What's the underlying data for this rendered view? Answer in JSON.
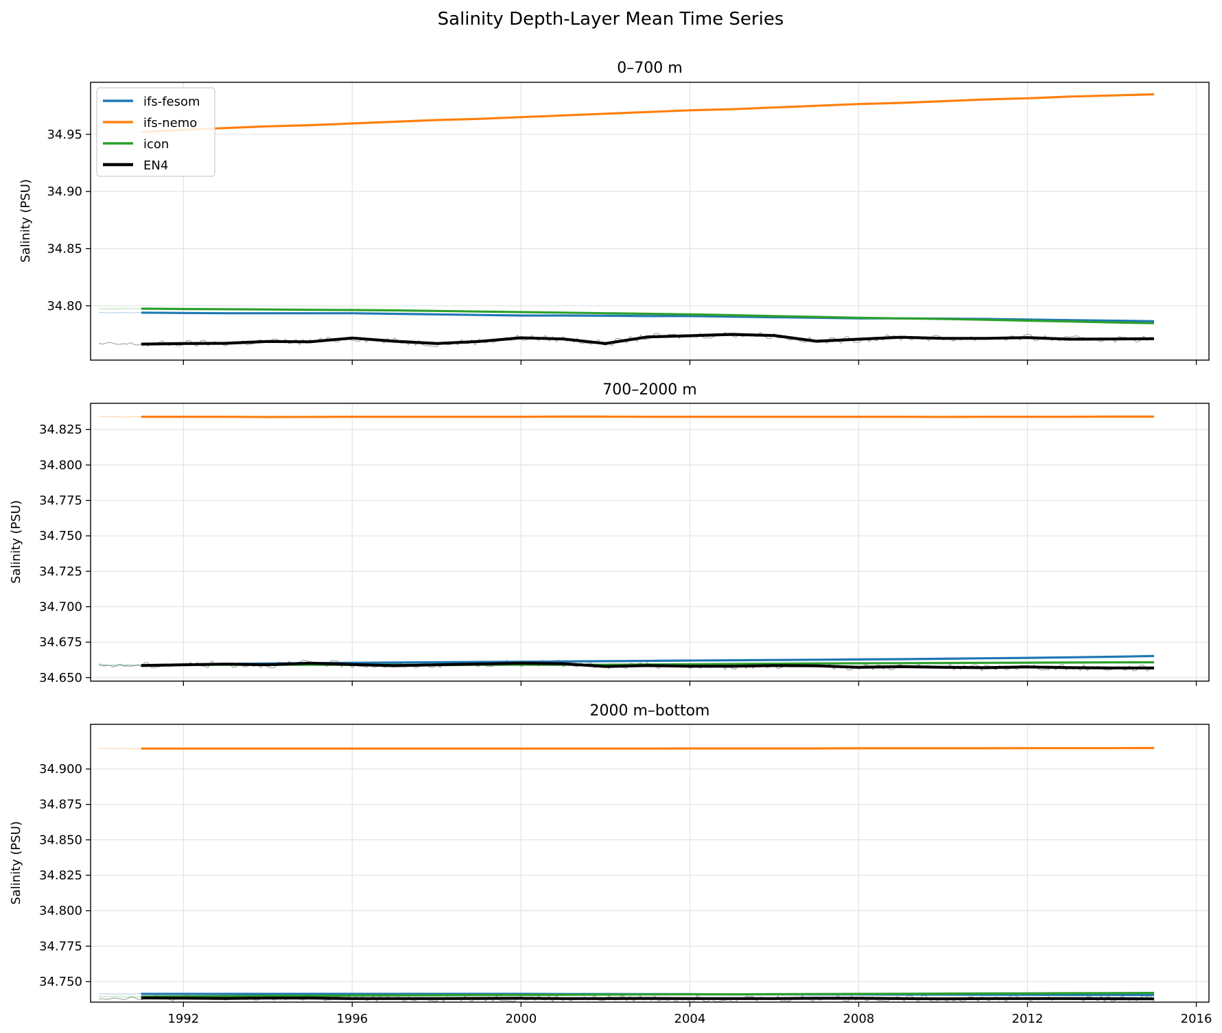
{
  "figure_title": "Salinity Depth-Layer Mean Time Series",
  "colors": {
    "ifs-fesom": "#1f77b4",
    "ifs-nemo": "#ff7f0e",
    "icon": "#2ca02c",
    "EN4": "#000000"
  },
  "legend": {
    "placement": "upper-left",
    "entries": [
      "ifs-fesom",
      "ifs-nemo",
      "icon",
      "EN4"
    ]
  },
  "chart_data": [
    {
      "type": "line",
      "title": "0–700 m",
      "ylabel": "Salinity (PSU)",
      "xlabel": "",
      "xlim": [
        1989.8,
        2016.3
      ],
      "ylim": [
        34.7525,
        34.9955
      ],
      "x_ticks": [
        1992,
        1996,
        2000,
        2004,
        2008,
        2012,
        2016
      ],
      "y_ticks": [
        34.8,
        34.85,
        34.9,
        34.95
      ],
      "y_tick_labels": [
        "34.80",
        "34.85",
        "34.90",
        "34.95"
      ],
      "grid": true,
      "legend": true,
      "x": [
        1991,
        1992,
        1993,
        1994,
        1995,
        1996,
        1997,
        1998,
        1999,
        2000,
        2001,
        2002,
        2003,
        2004,
        2005,
        2006,
        2007,
        2008,
        2009,
        2010,
        2011,
        2012,
        2013,
        2014,
        2015
      ],
      "series": [
        {
          "name": "ifs-fesom",
          "values": [
            34.794,
            34.7937,
            34.7935,
            34.7935,
            34.7935,
            34.7935,
            34.793,
            34.7925,
            34.792,
            34.7915,
            34.7915,
            34.7913,
            34.791,
            34.791,
            34.7905,
            34.79,
            34.7895,
            34.789,
            34.789,
            34.7888,
            34.7885,
            34.788,
            34.7875,
            34.787,
            34.7865
          ]
        },
        {
          "name": "ifs-nemo",
          "values": [
            34.952,
            34.954,
            34.9555,
            34.957,
            34.958,
            34.9595,
            34.961,
            34.9625,
            34.9635,
            34.965,
            34.9665,
            34.968,
            34.9695,
            34.971,
            34.972,
            34.9735,
            34.975,
            34.9765,
            34.9775,
            34.979,
            34.9805,
            34.9815,
            34.983,
            34.984,
            34.985
          ]
        },
        {
          "name": "icon",
          "values": [
            34.7975,
            34.7972,
            34.797,
            34.7968,
            34.7965,
            34.7963,
            34.796,
            34.7955,
            34.795,
            34.7945,
            34.794,
            34.7935,
            34.793,
            34.7925,
            34.7918,
            34.791,
            34.7903,
            34.7895,
            34.789,
            34.7885,
            34.7878,
            34.787,
            34.7863,
            34.7855,
            34.7848
          ]
        },
        {
          "name": "EN4",
          "values": [
            34.7665,
            34.767,
            34.7672,
            34.7688,
            34.7685,
            34.7718,
            34.769,
            34.767,
            34.7688,
            34.772,
            34.771,
            34.767,
            34.7728,
            34.7738,
            34.775,
            34.774,
            34.769,
            34.7708,
            34.7725,
            34.7715,
            34.7715,
            34.7722,
            34.7708,
            34.771,
            34.7712
          ]
        }
      ]
    },
    {
      "type": "line",
      "title": "700–2000 m",
      "ylabel": "Salinity (PSU)",
      "xlabel": "",
      "xlim": [
        1989.8,
        2016.3
      ],
      "ylim": [
        34.6475,
        34.8435
      ],
      "x_ticks": [
        1992,
        1996,
        2000,
        2004,
        2008,
        2012,
        2016
      ],
      "y_ticks": [
        34.65,
        34.675,
        34.7,
        34.725,
        34.75,
        34.775,
        34.8,
        34.825
      ],
      "y_tick_labels": [
        "34.650",
        "34.675",
        "34.700",
        "34.725",
        "34.750",
        "34.775",
        "34.800",
        "34.825"
      ],
      "grid": true,
      "legend": false,
      "x": [
        1991,
        1992,
        1993,
        1994,
        1995,
        1996,
        1997,
        1998,
        1999,
        2000,
        2001,
        2002,
        2003,
        2004,
        2005,
        2006,
        2007,
        2008,
        2009,
        2010,
        2011,
        2012,
        2013,
        2014,
        2015
      ],
      "series": [
        {
          "name": "ifs-fesom",
          "values": [
            34.6588,
            34.6592,
            34.6596,
            34.66,
            34.6602,
            34.6604,
            34.6606,
            34.6608,
            34.661,
            34.6612,
            34.6614,
            34.6616,
            34.6618,
            34.662,
            34.6622,
            34.6624,
            34.6626,
            34.6628,
            34.663,
            34.6633,
            34.6636,
            34.6639,
            34.6643,
            34.6647,
            34.6652
          ]
        },
        {
          "name": "ifs-nemo",
          "values": [
            34.834,
            34.834,
            34.834,
            34.8338,
            34.8339,
            34.834,
            34.834,
            34.834,
            34.834,
            34.834,
            34.8341,
            34.8341,
            34.834,
            34.834,
            34.834,
            34.834,
            34.834,
            34.834,
            34.834,
            34.8339,
            34.834,
            34.834,
            34.834,
            34.8341,
            34.8341
          ]
        },
        {
          "name": "icon",
          "values": [
            34.6588,
            34.659,
            34.659,
            34.659,
            34.659,
            34.659,
            34.659,
            34.6588,
            34.659,
            34.659,
            34.659,
            34.659,
            34.6592,
            34.6594,
            34.6596,
            34.6598,
            34.66,
            34.6601,
            34.6602,
            34.6603,
            34.6604,
            34.6605,
            34.6606,
            34.6607,
            34.6608
          ]
        },
        {
          "name": "EN4",
          "values": [
            34.6585,
            34.659,
            34.6595,
            34.659,
            34.6602,
            34.6592,
            34.6584,
            34.659,
            34.6596,
            34.6602,
            34.6598,
            34.6578,
            34.6585,
            34.658,
            34.658,
            34.6585,
            34.6583,
            34.6573,
            34.6577,
            34.6573,
            34.657,
            34.6575,
            34.657,
            34.6568,
            34.6568
          ]
        }
      ]
    },
    {
      "type": "line",
      "title": "2000 m–bottom",
      "ylabel": "Salinity (PSU)",
      "xlabel": "",
      "xlim": [
        1989.8,
        2016.3
      ],
      "ylim": [
        34.7355,
        34.9315
      ],
      "x_ticks": [
        1992,
        1996,
        2000,
        2004,
        2008,
        2012,
        2016
      ],
      "x_tick_labels": [
        "1992",
        "1996",
        "2000",
        "2004",
        "2008",
        "2012",
        "2016"
      ],
      "y_ticks": [
        34.75,
        34.775,
        34.8,
        34.825,
        34.85,
        34.875,
        34.9
      ],
      "y_tick_labels": [
        "34.750",
        "34.775",
        "34.800",
        "34.825",
        "34.850",
        "34.875",
        "34.900"
      ],
      "grid": true,
      "legend": false,
      "x": [
        1991,
        1992,
        1993,
        1994,
        1995,
        1996,
        1997,
        1998,
        1999,
        2000,
        2001,
        2002,
        2003,
        2004,
        2005,
        2006,
        2007,
        2008,
        2009,
        2010,
        2011,
        2012,
        2013,
        2014,
        2015
      ],
      "series": [
        {
          "name": "ifs-fesom",
          "values": [
            34.7413,
            34.7413,
            34.7413,
            34.7413,
            34.7413,
            34.7413,
            34.7413,
            34.7413,
            34.7413,
            34.7413,
            34.7412,
            34.7412,
            34.7411,
            34.7411,
            34.741,
            34.741,
            34.7409,
            34.7409,
            34.7408,
            34.7408,
            34.7407,
            34.7407,
            34.7406,
            34.7406,
            34.7405
          ]
        },
        {
          "name": "ifs-nemo",
          "values": [
            34.9144,
            34.9144,
            34.9144,
            34.9144,
            34.9144,
            34.9144,
            34.9144,
            34.9144,
            34.9144,
            34.9144,
            34.9144,
            34.9144,
            34.9144,
            34.9145,
            34.9145,
            34.9145,
            34.9145,
            34.9146,
            34.9146,
            34.9146,
            34.9146,
            34.9147,
            34.9147,
            34.9147,
            34.9148
          ]
        },
        {
          "name": "icon",
          "values": [
            34.7393,
            34.7395,
            34.7397,
            34.7399,
            34.74,
            34.7402,
            34.7403,
            34.7404,
            34.7405,
            34.7406,
            34.7407,
            34.7408,
            34.7409,
            34.741,
            34.741,
            34.7411,
            34.7412,
            34.7413,
            34.7414,
            34.7415,
            34.7416,
            34.7417,
            34.7418,
            34.7419,
            34.742
          ]
        },
        {
          "name": "EN4",
          "values": [
            34.7385,
            34.7383,
            34.7381,
            34.7384,
            34.7384,
            34.738,
            34.738,
            34.738,
            34.7381,
            34.7382,
            34.738,
            34.738,
            34.7381,
            34.738,
            34.738,
            34.738,
            34.7382,
            34.7382,
            34.738,
            34.7378,
            34.738,
            34.738,
            34.738,
            34.7379,
            34.7378
          ]
        }
      ]
    }
  ]
}
